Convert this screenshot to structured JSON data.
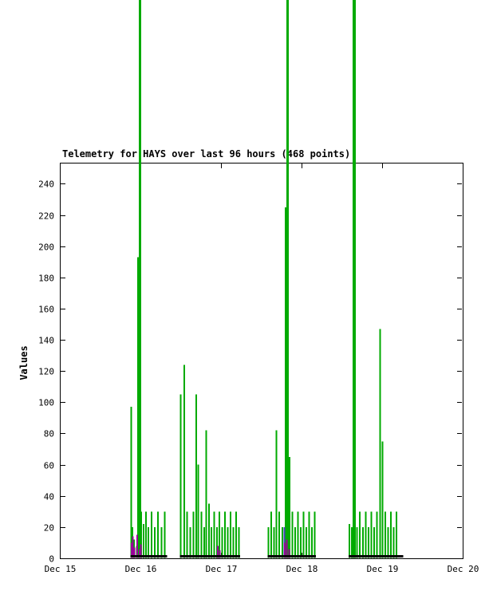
{
  "chart_data": {
    "type": "bar",
    "subtype": "impulses",
    "title": "Telemetry for HAYS over last 96 hours (468 points)",
    "xlabel": "",
    "ylabel": "Values",
    "grid": false,
    "legend": "none",
    "background_color": "#ffffff",
    "border_color": "#000000",
    "x_tick_labels": [
      "Dec 15",
      "Dec 16",
      "Dec 17",
      "Dec 18",
      "Dec 19",
      "Dec 20"
    ],
    "x_range_days": [
      0,
      5
    ],
    "y_ticks": [
      0,
      20,
      40,
      60,
      80,
      100,
      120,
      140,
      160,
      180,
      200,
      220,
      240
    ],
    "ylim": [
      0,
      253.5
    ],
    "series": [
      {
        "name": "green-impulses",
        "color": "#00AA00",
        "line_width": 2,
        "points": [
          [
            0.885,
            97
          ],
          [
            0.9,
            20
          ],
          [
            0.92,
            12
          ],
          [
            0.955,
            8
          ],
          [
            0.97,
            193
          ],
          [
            1.01,
            30
          ],
          [
            1.04,
            22
          ],
          [
            1.07,
            30
          ],
          [
            1.1,
            20
          ],
          [
            1.14,
            30
          ],
          [
            1.18,
            20
          ],
          [
            1.22,
            30
          ],
          [
            1.26,
            20
          ],
          [
            1.3,
            30
          ],
          [
            1.5,
            105
          ],
          [
            1.545,
            124
          ],
          [
            1.58,
            30
          ],
          [
            1.62,
            20
          ],
          [
            1.66,
            30
          ],
          [
            1.695,
            105
          ],
          [
            1.72,
            60
          ],
          [
            1.755,
            30
          ],
          [
            1.79,
            20
          ],
          [
            1.815,
            82
          ],
          [
            1.85,
            35
          ],
          [
            1.88,
            20
          ],
          [
            1.915,
            30
          ],
          [
            1.95,
            20
          ],
          [
            1.98,
            30
          ],
          [
            2.015,
            20
          ],
          [
            2.05,
            30
          ],
          [
            2.085,
            20
          ],
          [
            2.12,
            30
          ],
          [
            2.155,
            20
          ],
          [
            2.19,
            30
          ],
          [
            2.225,
            20
          ],
          [
            2.59,
            20
          ],
          [
            2.625,
            30
          ],
          [
            2.66,
            20
          ],
          [
            2.69,
            82
          ],
          [
            2.725,
            30
          ],
          [
            2.76,
            20
          ],
          [
            2.8,
            225
          ],
          [
            2.85,
            65
          ],
          [
            2.885,
            30
          ],
          [
            2.92,
            20
          ],
          [
            2.955,
            30
          ],
          [
            2.99,
            20
          ],
          [
            3.025,
            30
          ],
          [
            3.06,
            20
          ],
          [
            3.095,
            30
          ],
          [
            3.13,
            20
          ],
          [
            3.165,
            30
          ],
          [
            3.595,
            22
          ],
          [
            3.625,
            20
          ],
          [
            3.69,
            20
          ],
          [
            3.725,
            30
          ],
          [
            3.76,
            20
          ],
          [
            3.795,
            30
          ],
          [
            3.83,
            20
          ],
          [
            3.865,
            30
          ],
          [
            3.9,
            20
          ],
          [
            3.935,
            30
          ],
          [
            3.975,
            147
          ],
          [
            4.005,
            75
          ],
          [
            4.04,
            30
          ],
          [
            4.075,
            20
          ],
          [
            4.11,
            30
          ],
          [
            4.145,
            20
          ],
          [
            4.18,
            30
          ]
        ]
      },
      {
        "name": "green-impulses-offscale-top",
        "color": "#00AA00",
        "line_width": 3,
        "offscale": true,
        "points": [
          [
            0.995,
            1000,
            3
          ],
          [
            2.825,
            1000,
            3
          ],
          [
            3.655,
            1000,
            4
          ]
        ]
      },
      {
        "name": "blue-impulses",
        "color": "#4444BB",
        "line_width": 2,
        "points": [
          [
            2.785,
            20
          ]
        ]
      },
      {
        "name": "purple-impulses",
        "color": "#990099",
        "line_width": 2,
        "points": [
          [
            0.89,
            10
          ],
          [
            0.905,
            14
          ],
          [
            0.925,
            7
          ],
          [
            0.96,
            15
          ],
          [
            0.99,
            6
          ],
          [
            1.005,
            9
          ],
          [
            1.96,
            8
          ],
          [
            1.985,
            5
          ],
          [
            2.79,
            10
          ],
          [
            2.815,
            12
          ],
          [
            2.845,
            6
          ]
        ]
      },
      {
        "name": "black-baseline",
        "color": "#000000",
        "line_width": 3,
        "value": 1.2,
        "segments": [
          [
            0.875,
            1.33
          ],
          [
            1.49,
            2.24
          ],
          [
            2.58,
            3.18
          ],
          [
            3.585,
            4.26
          ]
        ]
      }
    ]
  }
}
